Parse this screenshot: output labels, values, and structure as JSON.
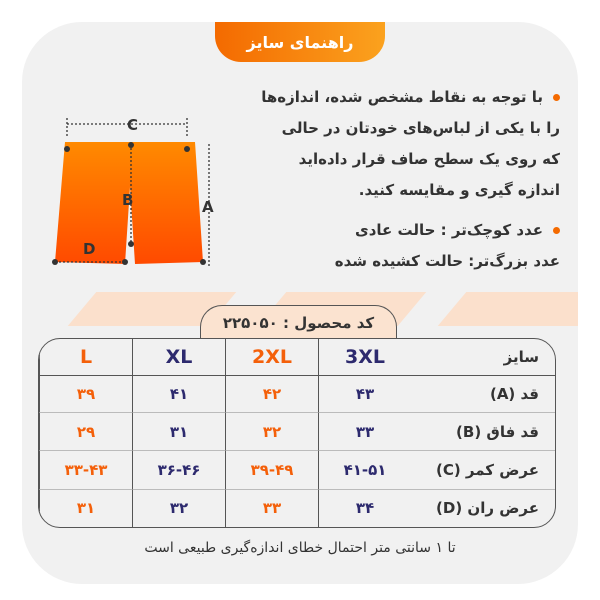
{
  "title": "راهنمای سایز",
  "instructions": {
    "bullet1": [
      "با توجه به نقاط مشخص شده، اندازه‌ها",
      "را با یکی از لباس‌های خودتان در حالی",
      "که روی یک سطح صاف قرار داده‌اید",
      "اندازه گیری و مقایسه کنید."
    ],
    "bullet2": [
      "عدد کوچک‌تر : حالت عادی",
      "عدد بزرگ‌تر: حالت کشیده شده"
    ]
  },
  "diagram": {
    "labels": {
      "a": "A",
      "b": "B",
      "c": "C",
      "d": "D"
    }
  },
  "product_code": "کد محصول :  ۲۲۵۰۵۰",
  "table": {
    "header": {
      "label": "سایز",
      "sizes": [
        "3XL",
        "2XL",
        "XL",
        "L"
      ]
    },
    "rows": [
      {
        "label": "قد (A)",
        "values": [
          "۴۳",
          "۴۲",
          "۴۱",
          "۳۹"
        ]
      },
      {
        "label": "قد فاق (B)",
        "values": [
          "۳۳",
          "۳۲",
          "۳۱",
          "۲۹"
        ]
      },
      {
        "label": "عرض کمر (C)",
        "values": [
          "۴۱-۵۱",
          "۳۹-۴۹",
          "۳۶-۴۶",
          "۳۳-۴۳"
        ]
      },
      {
        "label": "عرض ران (D)",
        "values": [
          "۳۴",
          "۳۳",
          "۳۲",
          "۳۱"
        ]
      }
    ]
  },
  "footnote": "تا ۱ سانتی متر احتمال خطای اندازه‌گیری طبیعی است",
  "colors": {
    "orange": "#f4600a",
    "navy": "#2d2a6e",
    "background": "#f1f1f1"
  }
}
